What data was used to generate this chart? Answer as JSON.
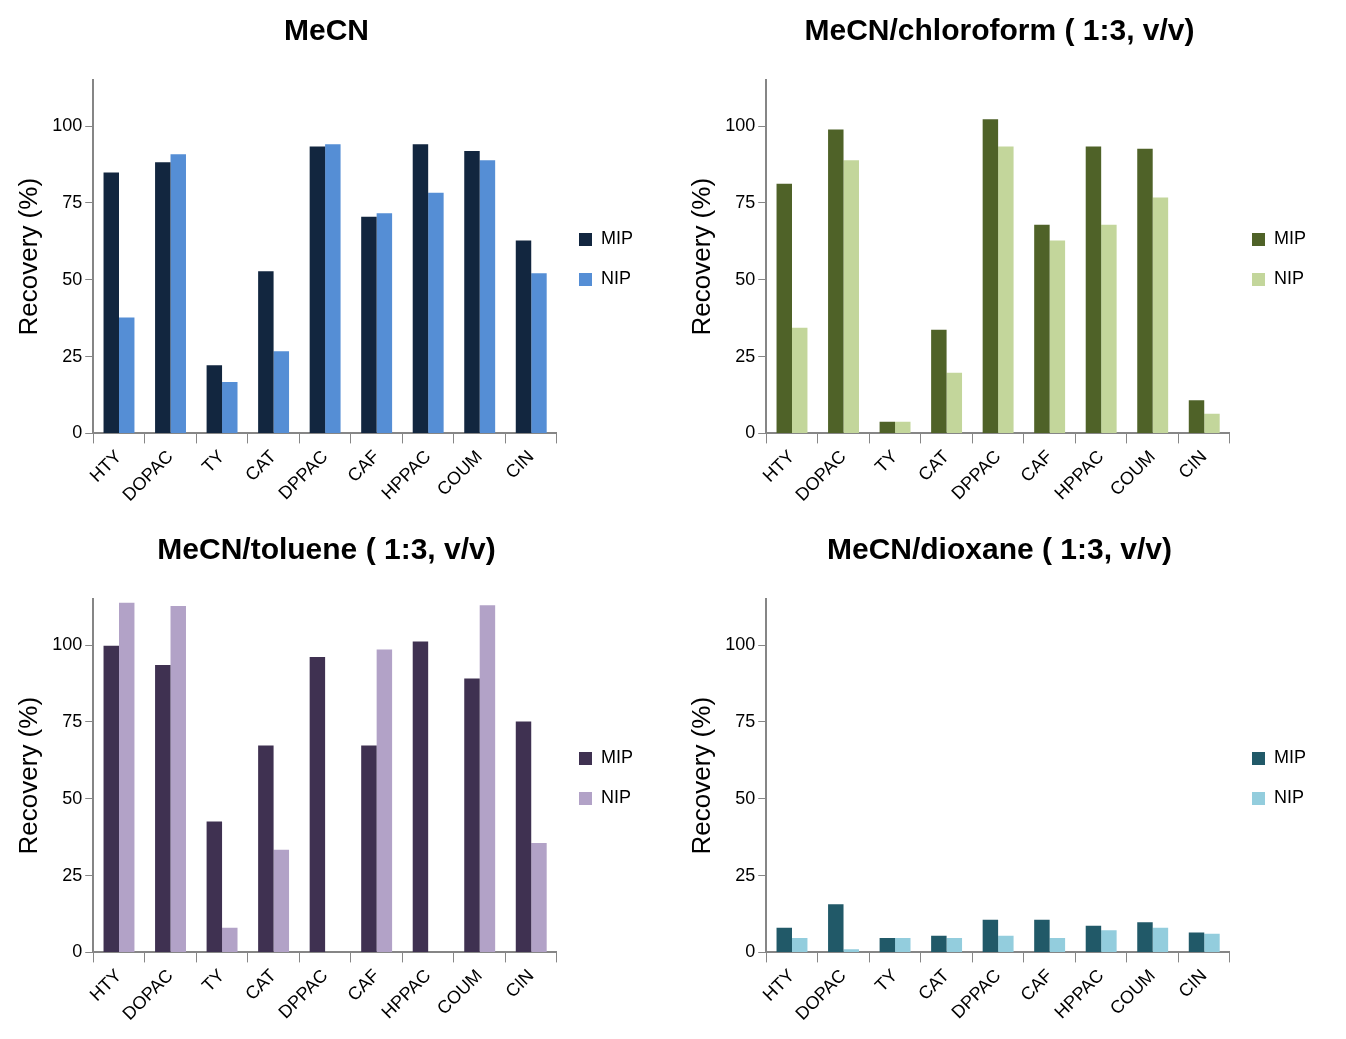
{
  "chart_data": [
    {
      "type": "bar",
      "title": "MeCN",
      "ylabel": "Recovery (%)",
      "categories": [
        "HTY",
        "DOPAC",
        "TY",
        "CAT",
        "DPPAC",
        "CAF",
        "HPPAC",
        "COUM",
        "CIN"
      ],
      "ylim": [
        0,
        115
      ],
      "yticks": [
        0,
        25,
        50,
        75,
        100
      ],
      "grid": false,
      "legend": "right",
      "series": [
        {
          "name": "MIP",
          "color": "#12263f",
          "values": [
            84.9,
            88.2,
            22.2,
            52.8,
            93.4,
            70.5,
            94.1,
            91.9,
            62.8
          ]
        },
        {
          "name": "NIP",
          "color": "#558ed5",
          "values": [
            37.7,
            90.8,
            16.7,
            26.7,
            94.1,
            71.6,
            78.3,
            88.9,
            52.1
          ]
        }
      ]
    },
    {
      "type": "bar",
      "title": "MeCN/chloroform ( 1:3, v/v)",
      "ylabel": "Recovery (%)",
      "categories": [
        "HTY",
        "DOPAC",
        "TY",
        "CAT",
        "DPPAC",
        "CAF",
        "HPPAC",
        "COUM",
        "CIN"
      ],
      "ylim": [
        0,
        115
      ],
      "yticks": [
        0,
        25,
        50,
        75,
        100
      ],
      "grid": false,
      "legend": "right",
      "series": [
        {
          "name": "MIP",
          "color": "#4f6228",
          "values": [
            81.2,
            98.9,
            3.8,
            33.7,
            102.2,
            67.9,
            93.4,
            92.6,
            10.8
          ]
        },
        {
          "name": "NIP",
          "color": "#c3d69b",
          "values": [
            34.4,
            88.9,
            3.8,
            19.7,
            93.4,
            62.8,
            67.9,
            76.8,
            6.4
          ]
        }
      ]
    },
    {
      "type": "bar",
      "title": "MeCN/toluene ( 1:3, v/v)",
      "ylabel": "Recovery (%)",
      "categories": [
        "HTY",
        "DOPAC",
        "TY",
        "CAT",
        "DPPAC",
        "CAF",
        "HPPAC",
        "COUM",
        "CIN"
      ],
      "ylim": [
        0,
        115
      ],
      "yticks": [
        0,
        25,
        50,
        75,
        100
      ],
      "grid": false,
      "legend": "right",
      "series": [
        {
          "name": "MIP",
          "color": "#3f3151",
          "values": [
            99.8,
            93.5,
            42.6,
            67.3,
            96.1,
            67.3,
            101.2,
            89.1,
            75.1
          ]
        },
        {
          "name": "NIP",
          "color": "#b2a2c7",
          "values": [
            113.8,
            112.7,
            8.0,
            33.4,
            null,
            98.6,
            null,
            113.0,
            35.6
          ]
        }
      ]
    },
    {
      "type": "bar",
      "title": "MeCN/dioxane ( 1:3, v/v)",
      "ylabel": "Recovery (%)",
      "categories": [
        "HTY",
        "DOPAC",
        "TY",
        "CAT",
        "DPPAC",
        "CAF",
        "HPPAC",
        "COUM",
        "CIN"
      ],
      "ylim": [
        0,
        115
      ],
      "yticks": [
        0,
        25,
        50,
        75,
        100
      ],
      "grid": false,
      "legend": "right",
      "series": [
        {
          "name": "MIP",
          "color": "#215968",
          "values": [
            8.0,
            15.7,
            4.7,
            5.4,
            10.6,
            10.6,
            8.7,
            9.8,
            6.5
          ]
        },
        {
          "name": "NIP",
          "color": "#93cddd",
          "values": [
            4.7,
            1.0,
            4.7,
            4.7,
            5.4,
            4.7,
            7.2,
            8.0,
            6.1
          ]
        }
      ]
    }
  ]
}
